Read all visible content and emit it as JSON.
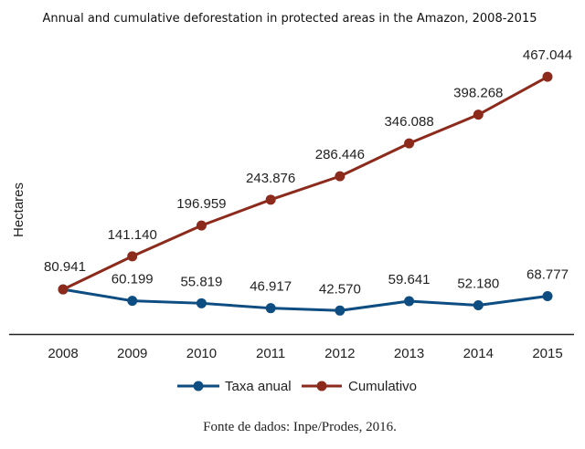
{
  "chart_data": {
    "type": "line",
    "title": "Annual and cumulative deforestation in protected areas in the Amazon, 2008-2015",
    "xlabel": "",
    "ylabel": "Hectares",
    "categories": [
      "2008",
      "2009",
      "2010",
      "2011",
      "2012",
      "2013",
      "2014",
      "2015"
    ],
    "series": [
      {
        "name": "Taxa anual",
        "color": "#0e4d82",
        "values": [
          80941,
          60199,
          55819,
          46917,
          42570,
          59641,
          52180,
          68777
        ],
        "labels": [
          "80.941",
          "60.199",
          "55.819",
          "46.917",
          "42.570",
          "59.641",
          "52.180",
          "68.777"
        ]
      },
      {
        "name": "Cumulativo",
        "color": "#8c2a1c",
        "values": [
          80941,
          141140,
          196959,
          243876,
          286446,
          346088,
          398268,
          467044
        ],
        "labels": [
          "80.941",
          "141.140",
          "196.959",
          "243.876",
          "286.446",
          "346.088",
          "398.268",
          "467.044"
        ]
      }
    ],
    "ylim": [
      0,
      480000
    ],
    "grid": false,
    "y_axis_ticks_shown": false,
    "legend": "bottom-center",
    "source": "Fonte de dados: Inpe/Prodes, 2016."
  }
}
